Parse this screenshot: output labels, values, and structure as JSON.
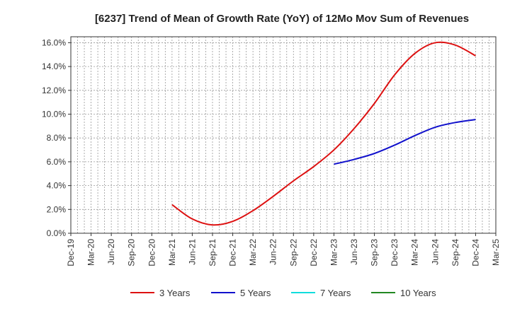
{
  "chart_data": {
    "type": "line",
    "title": "[6237]  Trend of Mean of Growth Rate (YoY) of 12Mo Mov Sum of Revenues",
    "xlabel": "",
    "ylabel": "",
    "y_tick_labels": [
      "0.0%",
      "2.0%",
      "4.0%",
      "6.0%",
      "8.0%",
      "10.0%",
      "12.0%",
      "14.0%",
      "16.0%"
    ],
    "ylim": [
      0,
      16.5
    ],
    "x_tick_labels": [
      "Dec-19",
      "Mar-20",
      "Jun-20",
      "Sep-20",
      "Dec-20",
      "Mar-21",
      "Jun-21",
      "Sep-21",
      "Dec-21",
      "Mar-22",
      "Jun-22",
      "Sep-22",
      "Dec-22",
      "Mar-23",
      "Jun-23",
      "Sep-23",
      "Dec-23",
      "Mar-24",
      "Jun-24",
      "Sep-24",
      "Dec-24",
      "Mar-25"
    ],
    "grid": true,
    "legend_position": "bottom",
    "series": [
      {
        "name": "3 Years",
        "color": "#dd1111",
        "x": [
          5,
          6,
          7,
          8,
          9,
          10,
          11,
          12,
          13,
          14,
          15,
          16,
          17,
          18,
          19,
          20
        ],
        "values": [
          2.4,
          1.2,
          0.7,
          1.0,
          1.9,
          3.1,
          4.4,
          5.6,
          7.0,
          8.8,
          10.9,
          13.3,
          15.1,
          16.0,
          15.8,
          14.9
        ]
      },
      {
        "name": "5 Years",
        "color": "#1111cc",
        "x": [
          13,
          14,
          15,
          16,
          17,
          18,
          19,
          20
        ],
        "values": [
          5.8,
          6.2,
          6.7,
          7.4,
          8.2,
          8.9,
          9.3,
          9.55
        ]
      },
      {
        "name": "7 Years",
        "color": "#11dddd",
        "x": [],
        "values": []
      },
      {
        "name": "10 Years",
        "color": "#228822",
        "x": [],
        "values": []
      }
    ]
  }
}
